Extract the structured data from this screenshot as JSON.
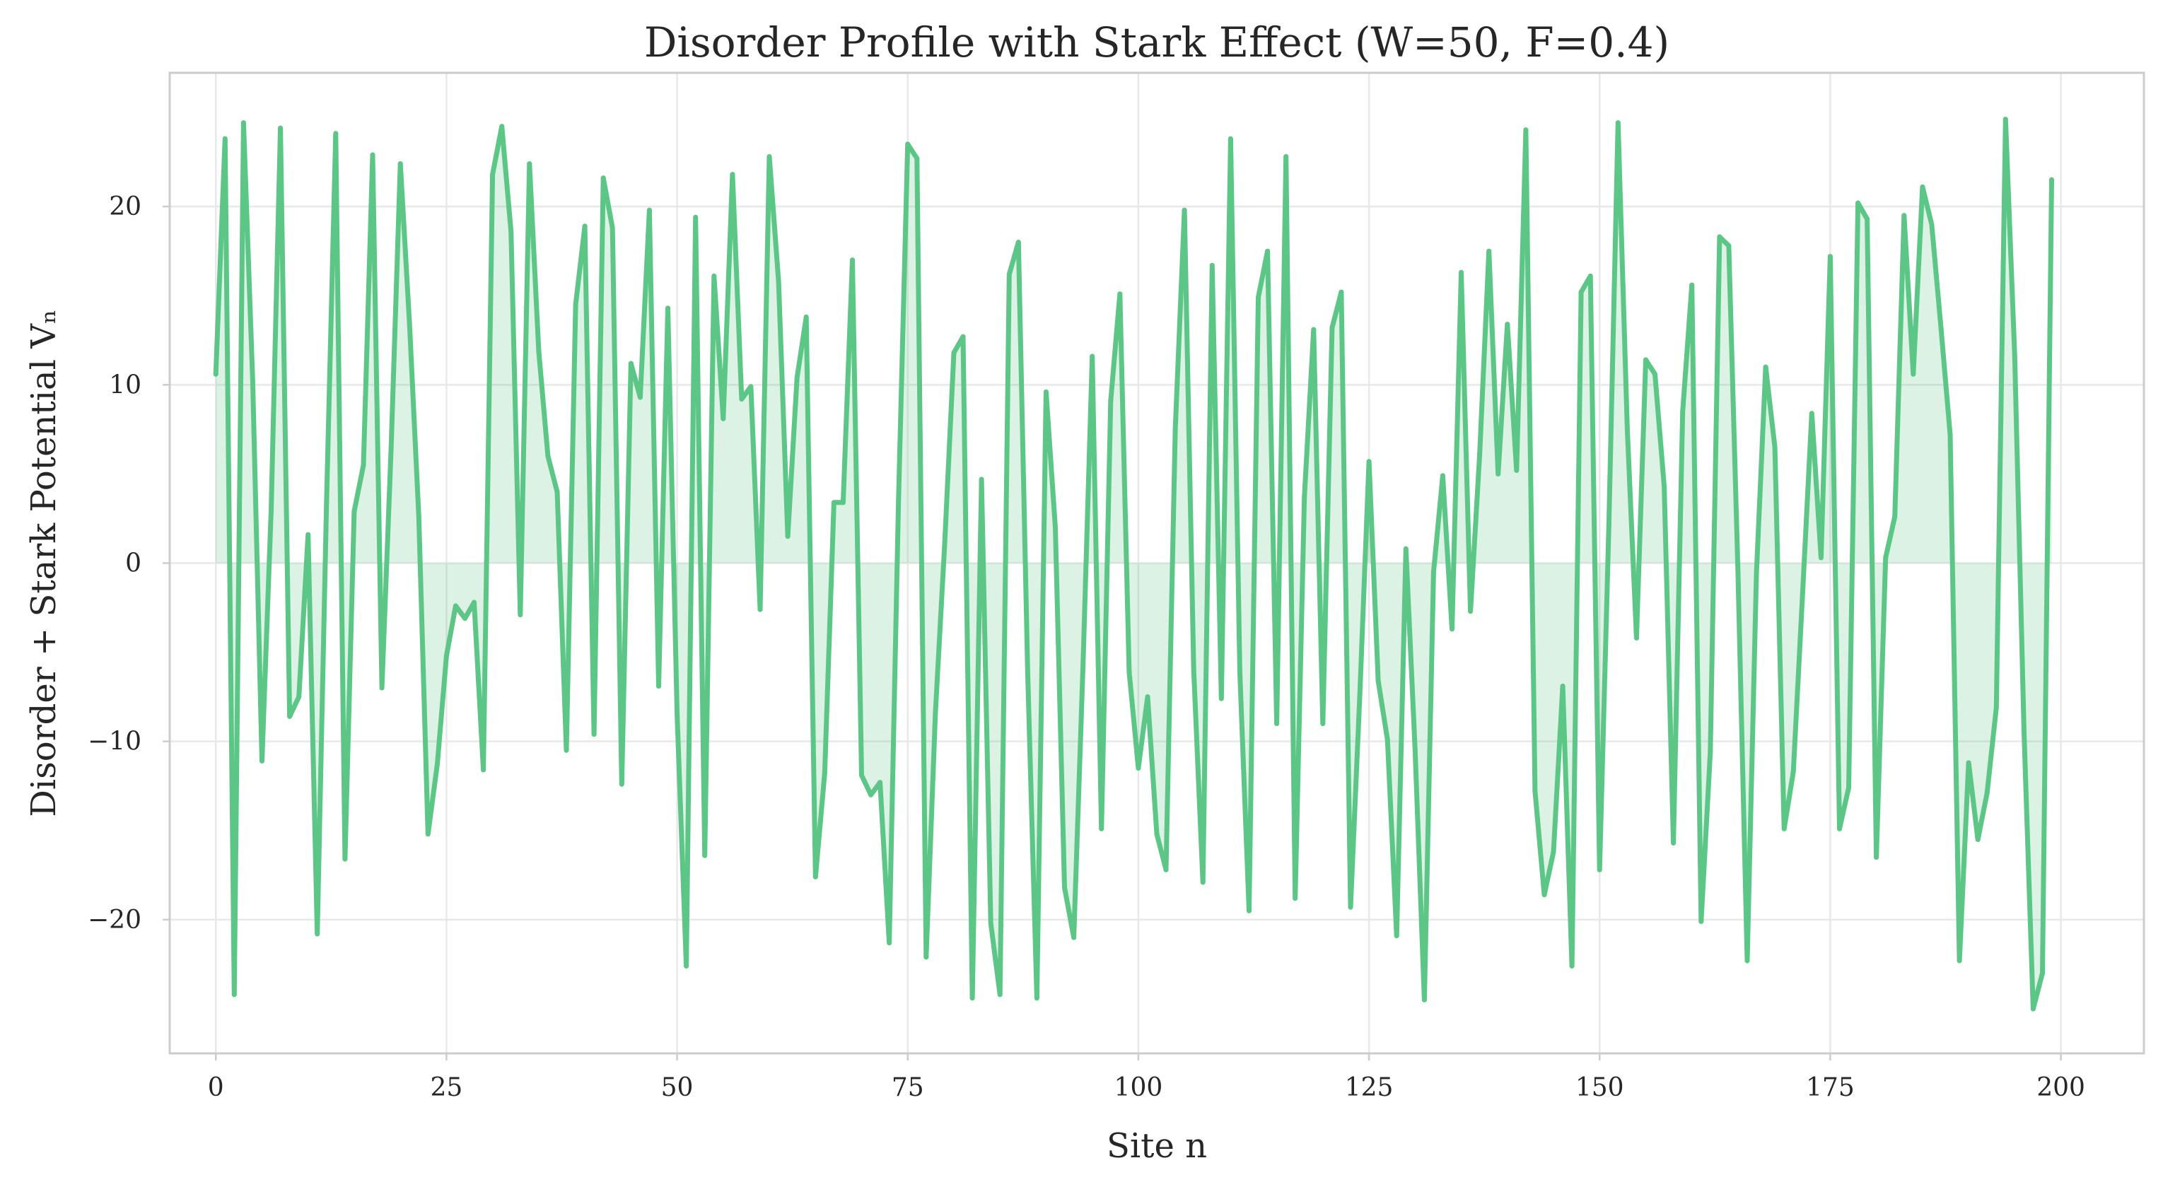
{
  "chart_data": {
    "type": "line",
    "title": "Disorder Profile with Stark Effect (W=50, F=0.4)",
    "xlabel": "Site n",
    "ylabel": "Disorder + Stark Potential Vₙ",
    "xlim": [
      -5,
      209
    ],
    "ylim": [
      -27.5,
      27.5
    ],
    "xticks": [
      0,
      25,
      50,
      75,
      100,
      125,
      150,
      175,
      200
    ],
    "yticks": [
      -20,
      -10,
      0,
      10,
      20
    ],
    "ytick_labels": [
      "−20",
      "−10",
      "0",
      "10",
      "20"
    ],
    "grid": true,
    "fill_to_zero": true,
    "colors": {
      "line": "#5cc686",
      "fill": "#5cc686",
      "grid": "#e8e8e8",
      "frame": "#cccccc",
      "text": "#262626"
    },
    "series": [
      {
        "name": "",
        "y": [
          10.6,
          23.8,
          -24.2,
          24.7,
          10.2,
          -11.1,
          3.0,
          24.4,
          -8.6,
          -7.5,
          1.6,
          -20.8,
          3.4,
          24.1,
          -16.6,
          2.9,
          5.5,
          22.9,
          -7.0,
          6.4,
          22.4,
          13.4,
          2.6,
          -15.2,
          -11.3,
          -5.2,
          -2.4,
          -3.1,
          -2.2,
          -11.6,
          21.8,
          24.5,
          18.6,
          -2.9,
          22.4,
          11.9,
          6.0,
          4.0,
          -10.5,
          14.5,
          18.9,
          -9.6,
          21.6,
          18.8,
          -12.4,
          11.2,
          9.3,
          19.8,
          -6.9,
          14.3,
          -8.5,
          -22.6,
          19.4,
          -16.4,
          16.1,
          8.1,
          21.8,
          9.2,
          9.9,
          -2.6,
          22.8,
          15.8,
          1.5,
          10.4,
          13.8,
          -17.6,
          -11.8,
          3.4,
          3.4,
          17.0,
          -11.9,
          -13.0,
          -12.3,
          -21.3,
          3.5,
          23.5,
          22.7,
          -22.1,
          -8.4,
          1.0,
          11.8,
          12.7,
          -24.4,
          4.7,
          -20.2,
          -24.2,
          16.2,
          18.0,
          -6.0,
          -24.4,
          9.6,
          2.0,
          -18.2,
          -21.0,
          -5.8,
          11.6,
          -14.9,
          9.1,
          15.1,
          -6.1,
          -11.5,
          -7.5,
          -15.2,
          -17.2,
          7.5,
          19.8,
          -6.0,
          -17.9,
          16.7,
          -7.6,
          23.8,
          -6.1,
          -19.5,
          14.9,
          17.5,
          -9.0,
          22.8,
          -18.8,
          3.7,
          13.1,
          -9.0,
          13.2,
          15.2,
          -19.3,
          -7.5,
          5.7,
          -6.6,
          -9.9,
          -20.9,
          0.8,
          -10.5,
          -24.5,
          -0.5,
          4.9,
          -3.7,
          16.3,
          -2.7,
          6.1,
          17.5,
          5.0,
          13.4,
          5.2,
          24.3,
          -12.8,
          -18.6,
          -16.2,
          -6.9,
          -22.6,
          15.2,
          16.1,
          -17.2,
          2.1,
          24.7,
          7.5,
          -4.2,
          11.4,
          10.6,
          4.3,
          -15.7,
          8.5,
          15.6,
          -20.1,
          -10.6,
          18.3,
          17.8,
          -0.5,
          -22.3,
          -0.6,
          11.0,
          6.5,
          -14.9,
          -11.7,
          -1.7,
          8.4,
          0.3,
          17.2,
          -14.9,
          -12.6,
          20.2,
          19.3,
          -16.5,
          0.3,
          2.6,
          19.5,
          10.6,
          21.1,
          19.0,
          13.2,
          7.2,
          -22.3,
          -11.2,
          -15.5,
          -12.9,
          -8.1,
          24.9,
          11.6,
          -9.4,
          -25.0,
          -23.0,
          21.5
        ]
      }
    ]
  }
}
